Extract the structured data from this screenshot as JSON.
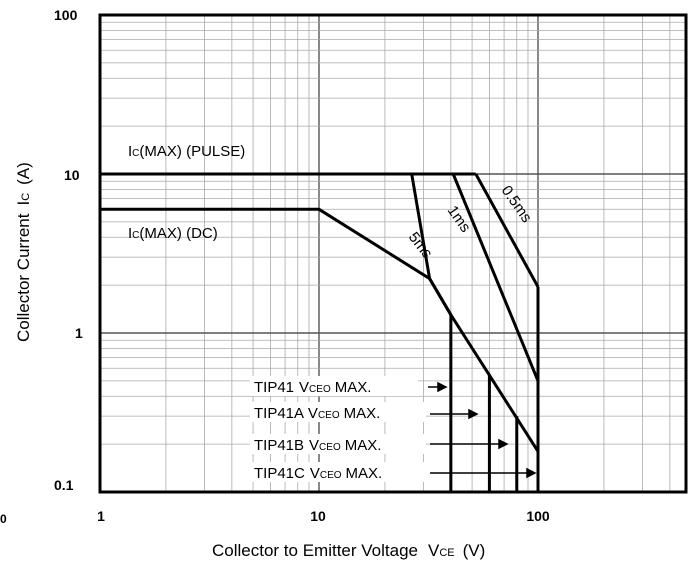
{
  "chart_data": {
    "type": "line",
    "xscale": "log",
    "yscale": "log",
    "xlim": [
      1,
      500
    ],
    "ylim": [
      0.1,
      100
    ],
    "xlabel": "Collector to Emitter Voltage",
    "xlabel_symbol": "V",
    "xlabel_subscript": "CE",
    "xlabel_unit": "(V)",
    "ylabel": "Collector Current",
    "ylabel_symbol": "I",
    "ylabel_subscript": "C",
    "ylabel_unit": "(A)",
    "x_ticks": [
      {
        "value": 1,
        "label": "1"
      },
      {
        "value": 10,
        "label": "10"
      },
      {
        "value": 100,
        "label": "100"
      }
    ],
    "y_ticks": [
      {
        "value": 0.1,
        "label": "0.1"
      },
      {
        "value": 1,
        "label": "1"
      },
      {
        "value": 10,
        "label": "10"
      },
      {
        "value": 100,
        "label": "100"
      }
    ],
    "grid": true,
    "origin_label": "0",
    "series": [
      {
        "id": "ic-pulse",
        "points": [
          [
            1,
            10
          ],
          [
            52,
            10
          ]
        ]
      },
      {
        "id": "ic-dc",
        "points": [
          [
            1,
            6
          ],
          [
            10,
            6
          ],
          [
            32,
            2.2
          ],
          [
            40,
            1.3
          ]
        ]
      },
      {
        "id": "5ms",
        "points": [
          [
            26.5,
            10
          ],
          [
            32,
            2.2
          ],
          [
            40,
            1.3
          ],
          [
            100,
            0.18
          ]
        ]
      },
      {
        "id": "1ms",
        "points": [
          [
            41,
            10
          ],
          [
            100,
            0.5
          ]
        ]
      },
      {
        "id": "0.5ms",
        "points": [
          [
            52,
            10
          ],
          [
            100,
            1.95
          ]
        ]
      },
      {
        "id": "0.5ms-upper",
        "points": [
          [
            100,
            1.95
          ],
          [
            100,
            0.1
          ]
        ]
      }
    ],
    "vceo_limits": [
      {
        "label": "TIP41",
        "vceo": 40,
        "top": 1.3
      },
      {
        "label": "TIP41A",
        "vceo": 60,
        "top": 0.55
      },
      {
        "label": "TIP41B",
        "vceo": 80,
        "top": 0.3
      },
      {
        "label": "TIP41C",
        "vceo": 100,
        "top": 0.18
      }
    ],
    "annotations": {
      "ic_pulse": {
        "pre": "I",
        "sub": "C",
        "post": "(MAX) (PULSE)"
      },
      "ic_dc": {
        "pre": "I",
        "sub": "C",
        "post": "(MAX) (DC)"
      },
      "t_5ms": "5ms",
      "t_1ms": "1ms",
      "t_05ms": "0.5ms"
    },
    "vceo_labels": [
      {
        "part": "TIP41",
        "sym": "V",
        "sub": "CEO",
        "suffix": "MAX."
      },
      {
        "part": "TIP41A",
        "sym": "V",
        "sub": "CEO",
        "suffix": "MAX."
      },
      {
        "part": "TIP41B",
        "sym": "V",
        "sub": "CEO",
        "suffix": "MAX."
      },
      {
        "part": "TIP41C",
        "sym": "V",
        "sub": "CEO",
        "suffix": "MAX."
      }
    ]
  }
}
